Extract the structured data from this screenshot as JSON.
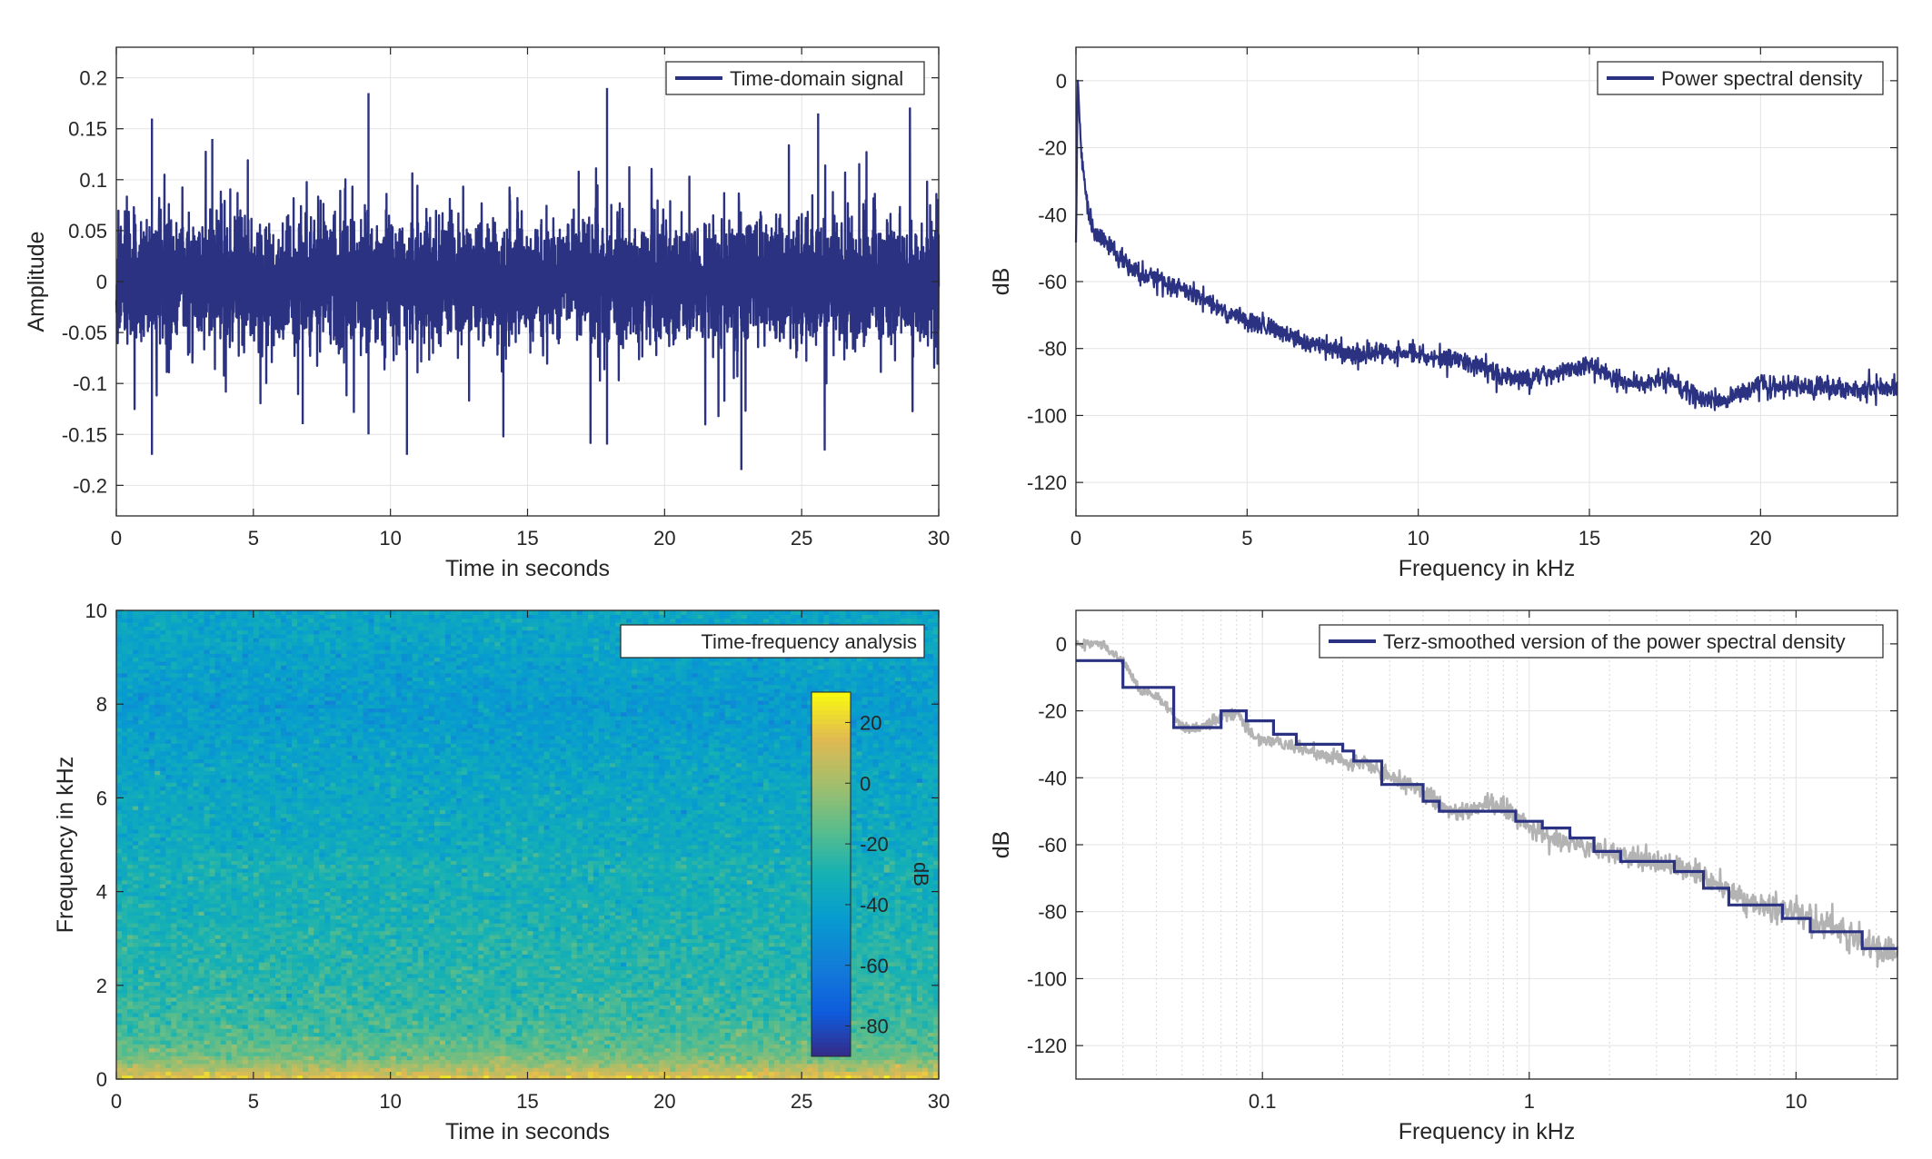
{
  "colors": {
    "signal": "#2b3282",
    "gray_psd": "#b3b3b3",
    "grid": "#e3e3e3",
    "axis": "#262626"
  },
  "chart_data": [
    {
      "id": "time_domain",
      "type": "line",
      "legend": [
        "Time-domain signal"
      ],
      "legend_position": "top-right",
      "xlabel": "Time in seconds",
      "ylabel": "Amplitude",
      "xlim": [
        0,
        30
      ],
      "ylim": [
        -0.23,
        0.23
      ],
      "xticks": [
        0,
        5,
        10,
        15,
        20,
        25,
        30
      ],
      "xtick_labels": [
        "0",
        "5",
        "10",
        "15",
        "20",
        "25",
        "30"
      ],
      "yticks": [
        -0.2,
        -0.15,
        -0.1,
        -0.05,
        0,
        0.05,
        0.1,
        0.15,
        0.2
      ],
      "ytick_labels": [
        "-0.2",
        "-0.15",
        "-0.1",
        "-0.05",
        "0",
        "0.05",
        "0.1",
        "0.15",
        "0.2"
      ],
      "grid": true,
      "series": [
        {
          "style": "dense noisy signal",
          "approx_envelope_max": 0.19,
          "approx_envelope_min": -0.185,
          "approx_dense_band": [
            -0.06,
            0.06
          ],
          "peaks": [
            [
              1.3,
              0.16
            ],
            [
              1.3,
              -0.17
            ],
            [
              9.2,
              0.185
            ],
            [
              9.2,
              -0.15
            ],
            [
              10.6,
              -0.17
            ],
            [
              17.9,
              0.19
            ],
            [
              17.9,
              -0.16
            ],
            [
              22.8,
              -0.185
            ],
            [
              25.6,
              0.165
            ],
            [
              3.5,
              0.14
            ],
            [
              6.8,
              -0.14
            ]
          ]
        }
      ]
    },
    {
      "id": "psd",
      "type": "line",
      "legend": [
        "Power spectral density"
      ],
      "legend_position": "top-right",
      "xlabel": "Frequency in kHz",
      "ylabel": "dB",
      "xlim": [
        0,
        24
      ],
      "ylim": [
        -130,
        10
      ],
      "xticks": [
        0,
        5,
        10,
        15,
        20
      ],
      "xtick_labels": [
        "0",
        "5",
        "10",
        "15",
        "20"
      ],
      "yticks": [
        0,
        -20,
        -40,
        -60,
        -80,
        -100,
        -120
      ],
      "ytick_labels": [
        "0",
        "-20",
        "-40",
        "-60",
        "-80",
        "-100",
        "-120"
      ],
      "grid": true,
      "series": [
        {
          "x": [
            0,
            0.05,
            0.15,
            0.3,
            0.5,
            1,
            1.5,
            2,
            2.5,
            3,
            3.5,
            4,
            4.5,
            5,
            5.5,
            6,
            6.5,
            7,
            7.5,
            8,
            8.5,
            9,
            9.5,
            10,
            10.5,
            11,
            11.5,
            12,
            12.5,
            13,
            13.5,
            14,
            14.5,
            15,
            15.5,
            16,
            16.5,
            17,
            17.5,
            18,
            18.5,
            19,
            19.5,
            20,
            20.5,
            21,
            21.5,
            22,
            22.5,
            23,
            23.5,
            24
          ],
          "y": [
            -50,
            0,
            -20,
            -35,
            -45,
            -50,
            -55,
            -59,
            -60,
            -62,
            -64,
            -67,
            -70,
            -72,
            -73,
            -75,
            -77,
            -79,
            -80,
            -82,
            -81,
            -81,
            -82,
            -82,
            -83,
            -83,
            -84,
            -86,
            -88,
            -89,
            -88,
            -87,
            -86,
            -85,
            -88,
            -90,
            -91,
            -89,
            -90,
            -94,
            -95,
            -96,
            -93,
            -91,
            -91,
            -91,
            -92,
            -92,
            -92,
            -92,
            -92,
            -92
          ]
        }
      ]
    },
    {
      "id": "spectrogram",
      "type": "heatmap",
      "legend": [
        "Time-frequency analysis"
      ],
      "legend_position": "top-right",
      "xlabel": "Time in seconds",
      "ylabel": "Frequency in kHz",
      "xlim": [
        0,
        30
      ],
      "ylim": [
        0,
        10
      ],
      "xticks": [
        0,
        5,
        10,
        15,
        20,
        25,
        30
      ],
      "xtick_labels": [
        "0",
        "5",
        "10",
        "15",
        "20",
        "25",
        "30"
      ],
      "yticks": [
        0,
        2,
        4,
        6,
        8,
        10
      ],
      "ytick_labels": [
        "0",
        "2",
        "4",
        "6",
        "8",
        "10"
      ],
      "colorbar": {
        "label": "dB",
        "range": [
          -90,
          30
        ],
        "ticks": [
          20,
          0,
          -20,
          -40,
          -60,
          -80
        ],
        "tick_labels": [
          "20",
          "0",
          "-20",
          "-40",
          "-60",
          "-80"
        ],
        "colormap": "parula"
      },
      "profile_by_frequency_khz": {
        "freq": [
          0,
          0.2,
          0.5,
          1,
          2,
          3,
          4,
          4.5,
          5,
          6,
          7,
          8,
          9,
          10
        ],
        "level_db": [
          20,
          5,
          -12,
          -20,
          -26,
          -28,
          -32,
          -30,
          -35,
          -37,
          -40,
          -45,
          -40,
          -38
        ]
      }
    },
    {
      "id": "terz",
      "type": "line",
      "legend": [
        "Terz-smoothed version of the power spectral density"
      ],
      "legend_position": "top-right",
      "xlabel": "Frequency in kHz",
      "ylabel": "dB",
      "xscale": "log",
      "xlim": [
        0.02,
        24
      ],
      "ylim": [
        -130,
        10
      ],
      "xticks": [
        0.1,
        1,
        10
      ],
      "xtick_labels": [
        "0.1",
        "1",
        "10"
      ],
      "yticks": [
        0,
        -20,
        -40,
        -60,
        -80,
        -100,
        -120
      ],
      "ytick_labels": [
        "0",
        "-20",
        "-40",
        "-60",
        "-80",
        "-100",
        "-120"
      ],
      "grid": true,
      "series": [
        {
          "style": "gray raw psd",
          "x": [
            0.02,
            0.025,
            0.03,
            0.035,
            0.04,
            0.045,
            0.05,
            0.06,
            0.07,
            0.08,
            0.09,
            0.1,
            0.12,
            0.15,
            0.2,
            0.25,
            0.3,
            0.4,
            0.5,
            0.6,
            0.7,
            0.8,
            0.9,
            1,
            1.2,
            1.5,
            2,
            2.5,
            3,
            4,
            5,
            6,
            8,
            10,
            12,
            15,
            18,
            20,
            24
          ],
          "y": [
            0,
            0,
            -5,
            -14,
            -16,
            -20,
            -25,
            -25,
            -22,
            -20,
            -27,
            -28,
            -30,
            -32,
            -35,
            -36,
            -40,
            -44,
            -50,
            -49,
            -48,
            -49,
            -52,
            -55,
            -58,
            -60,
            -62,
            -64,
            -65,
            -68,
            -72,
            -76,
            -79,
            -80,
            -83,
            -86,
            -90,
            -91,
            -92
          ]
        },
        {
          "style": "navy terz-smoothed step",
          "x": [
            0.02,
            0.03,
            0.03,
            0.0465,
            0.0465,
            0.07,
            0.07,
            0.087,
            0.087,
            0.11,
            0.11,
            0.134,
            0.134,
            0.2,
            0.2,
            0.22,
            0.22,
            0.28,
            0.28,
            0.4,
            0.4,
            0.46,
            0.46,
            0.57,
            0.57,
            0.89,
            0.89,
            1.12,
            1.12,
            1.42,
            1.42,
            1.75,
            1.75,
            2.2,
            2.2,
            3.5,
            3.5,
            4.5,
            4.5,
            5.6,
            5.6,
            8.9,
            8.9,
            11.3,
            11.3,
            17.7,
            17.7,
            24
          ],
          "y": [
            -5,
            -5,
            -13,
            -13,
            -25,
            -25,
            -20,
            -20,
            -23,
            -23,
            -27,
            -27,
            -30,
            -30,
            -32,
            -32,
            -35,
            -35,
            -42,
            -42,
            -47,
            -47,
            -50,
            -50,
            -50,
            -50,
            -53,
            -53,
            -55,
            -55,
            -58,
            -58,
            -62,
            -62,
            -65,
            -65,
            -68,
            -68,
            -73,
            -73,
            -78,
            -78,
            -82,
            -82,
            -86,
            -86,
            -91,
            -91
          ]
        }
      ]
    }
  ]
}
